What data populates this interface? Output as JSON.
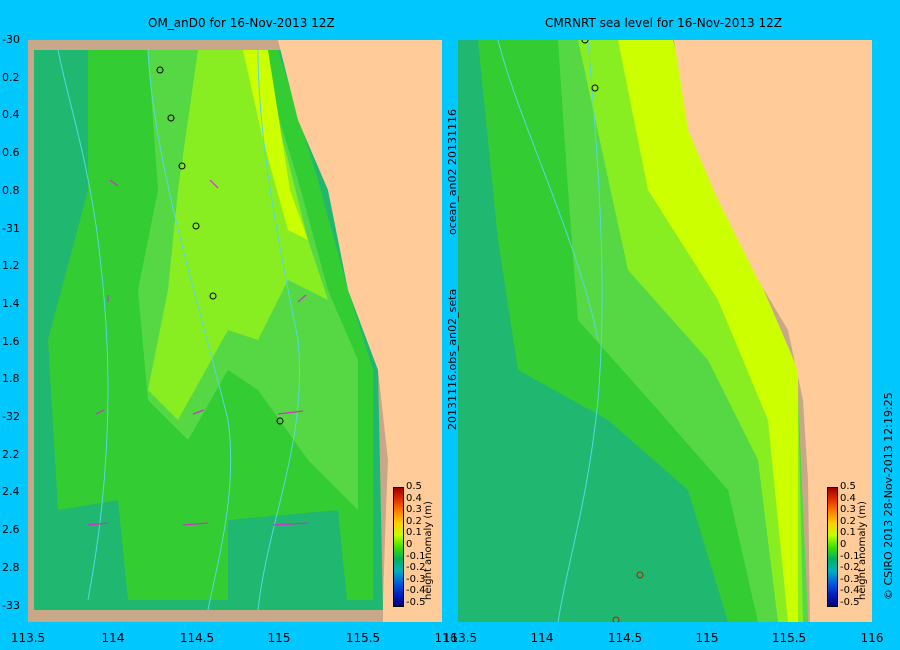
{
  "titles": {
    "left": "OM_anD0 for 16-Nov-2013 12Z",
    "right": "CMRNRT sea level  for 16-Nov-2013 12Z"
  },
  "y_labels": [
    "-30",
    "0.2",
    "0.4",
    "0.6",
    "0.8",
    "-31",
    "1.2",
    "1.4",
    "1.6",
    "1.8",
    "-32",
    "2.2",
    "2.4",
    "2.6",
    "2.8",
    "-33"
  ],
  "x_labels_left": [
    "113.5",
    "114",
    "114.5",
    "115",
    "115.5",
    "116"
  ],
  "x_labels_right": [
    "113.5",
    "114",
    "114.5",
    "115",
    "115.5",
    "116"
  ],
  "side_label_1": "ocean_an02  20131116",
  "side_label_2": "20131116.obs_an02_seta",
  "footer": "© CSIRO 2013   28-Nov-2013 12:19:25",
  "colorbar": {
    "title": "height anomaly (m)",
    "ticks": [
      "0.5",
      "0.4",
      "0.3",
      "0.2",
      "0.1",
      "0",
      "-0.1",
      "-0.2",
      "-0.3",
      "-0.4",
      "-0.5"
    ]
  },
  "colors": {
    "background": "#00c8ff",
    "land": "#ffcc99",
    "shelf": "#c8a888",
    "pale_green": "#66dd66",
    "green": "#33cc33",
    "teal": "#20b870",
    "yellow_green": "#ccff00",
    "yellow_green2": "#88ee22",
    "vector": "#cc33cc"
  }
}
